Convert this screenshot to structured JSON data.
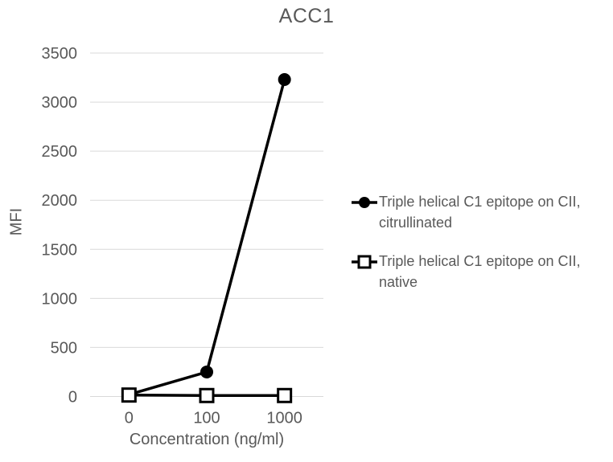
{
  "chart_data": {
    "type": "line",
    "title": "ACC1",
    "xlabel": "Concentration (ng/ml)",
    "ylabel": "MFI",
    "categories": [
      "0",
      "100",
      "1000"
    ],
    "series": [
      {
        "name": "Triple helical C1 epitope on CII, citrullinated",
        "marker": "filled-circle",
        "color": "#000000",
        "values": [
          20,
          250,
          3230
        ]
      },
      {
        "name": "Triple helical C1 epitope on CII, native",
        "marker": "open-square",
        "color": "#000000",
        "values": [
          15,
          10,
          10
        ]
      }
    ],
    "ylim": [
      0,
      3500
    ],
    "ytick_step": 500,
    "ytick_labels": [
      "0",
      "500",
      "1000",
      "1500",
      "2000",
      "2500",
      "3000",
      "3500"
    ],
    "grid": true,
    "legend_position": "right",
    "legend": [
      {
        "marker": "filled-circle",
        "line1": "Triple helical C1 epitope on CII,",
        "line2": "citrullinated"
      },
      {
        "marker": "open-square",
        "line1": "Triple helical C1 epitope on CII,",
        "line2": "native"
      }
    ],
    "theme": {
      "text_color": "#595959",
      "gridline_color": "#d9d9d9",
      "series_color": "#000000",
      "background": "#ffffff"
    }
  }
}
